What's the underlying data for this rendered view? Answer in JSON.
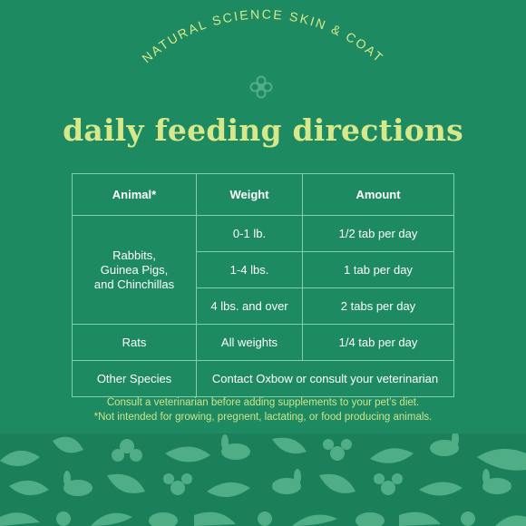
{
  "brand_line": "NATURAL SCIENCE SKIN & COAT",
  "headline": "daily feeding directions",
  "table": {
    "headers": [
      "Animal*",
      "Weight",
      "Amount"
    ],
    "group_animal": "Rabbits, Guinea Pigs, and Chinchillas",
    "group_animal_lines": [
      "Rabbits,",
      "Guinea Pigs,",
      "and Chinchillas"
    ],
    "group_rows": [
      {
        "weight": "0-1 lb.",
        "amount": "1/2 tab per day"
      },
      {
        "weight": "1-4 lbs.",
        "amount": "1 tab per day"
      },
      {
        "weight": "4 lbs. and over",
        "amount": "2 tabs per day"
      }
    ],
    "rats": {
      "animal": "Rats",
      "weight": "All weights",
      "amount": "1/4 tab per day"
    },
    "other": {
      "animal": "Other Species",
      "note": "Contact Oxbow or consult your veterinarian"
    }
  },
  "notes": [
    "Consult a veterinarian before adding supplements to your pet’s diet.",
    "*Not intended for growing, pregnent, lactating, or food producing animals."
  ],
  "colors": {
    "background": "#1e8a62",
    "accent_text": "#d7e88a",
    "table_border": "#7fd0ae",
    "pattern_shapes": "#4fae86"
  },
  "icons": [
    "flower-emblem-icon",
    "leaf-icon",
    "bunny-icon",
    "blossom-icon"
  ]
}
